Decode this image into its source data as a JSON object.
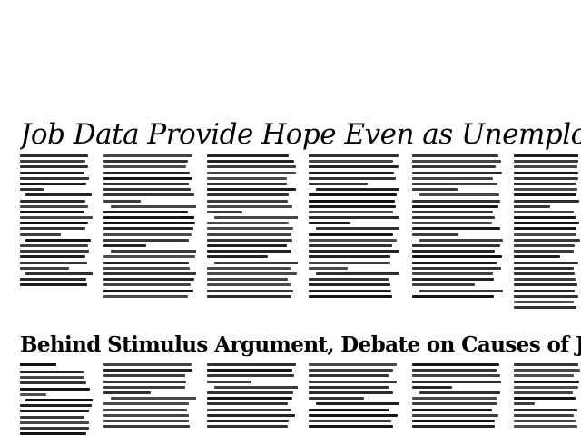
{
  "article_1": {
    "headline": "Job Data Provide Hope Even as Unemployment Rate I"
  },
  "article_2": {
    "headline": "Behind Stimulus Argument, Debate on Causes of Joblessness"
  }
}
